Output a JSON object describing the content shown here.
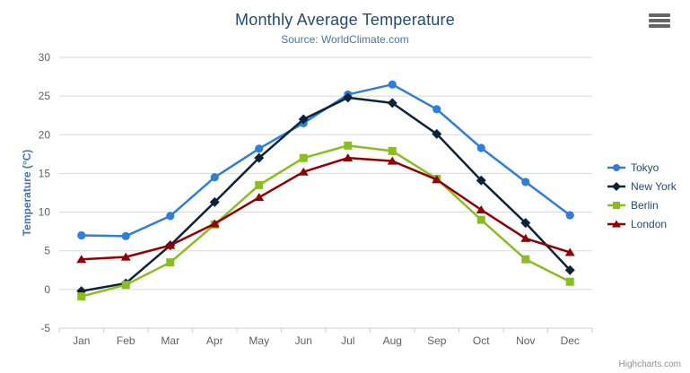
{
  "chart_data": {
    "type": "line",
    "title": "Monthly Average Temperature",
    "subtitle": "Source: WorldClimate.com",
    "xlabel": "",
    "ylabel": "Temperature (°C)",
    "categories": [
      "Jan",
      "Feb",
      "Mar",
      "Apr",
      "May",
      "Jun",
      "Jul",
      "Aug",
      "Sep",
      "Oct",
      "Nov",
      "Dec"
    ],
    "ylim": [
      -5,
      30
    ],
    "yticks": [
      -5,
      0,
      5,
      10,
      15,
      20,
      25,
      30
    ],
    "grid": true,
    "legend_position": "right",
    "series": [
      {
        "name": "Tokyo",
        "color": "#2f7ed8",
        "marker": "circle",
        "values": [
          7.0,
          6.9,
          9.5,
          14.5,
          18.2,
          21.5,
          25.2,
          26.5,
          23.3,
          18.3,
          13.9,
          9.6
        ]
      },
      {
        "name": "New York",
        "color": "#0d233a",
        "marker": "diamond",
        "values": [
          -0.2,
          0.8,
          5.7,
          11.3,
          17.0,
          22.0,
          24.8,
          24.1,
          20.1,
          14.1,
          8.6,
          2.5
        ]
      },
      {
        "name": "Berlin",
        "color": "#8bbc21",
        "marker": "square",
        "values": [
          -0.9,
          0.6,
          3.5,
          8.4,
          13.5,
          17.0,
          18.6,
          17.9,
          14.3,
          9.0,
          3.9,
          1.0
        ]
      },
      {
        "name": "London",
        "color": "#910000",
        "marker": "triangle",
        "values": [
          3.9,
          4.2,
          5.7,
          8.5,
          11.9,
          15.2,
          17.0,
          16.6,
          14.2,
          10.3,
          6.6,
          4.8
        ]
      }
    ],
    "colors": {
      "grid_line": "#d8d8d8",
      "axis_line": "#c0d0e0",
      "tick_label": "#606060",
      "title": "#274b6d",
      "subtitle": "#4d759e",
      "axis_title": "#4572a7",
      "legend_text": "#274b6d"
    }
  },
  "export_menu": {
    "icon": "hamburger-icon"
  },
  "credits": {
    "text": "Highcharts.com"
  }
}
